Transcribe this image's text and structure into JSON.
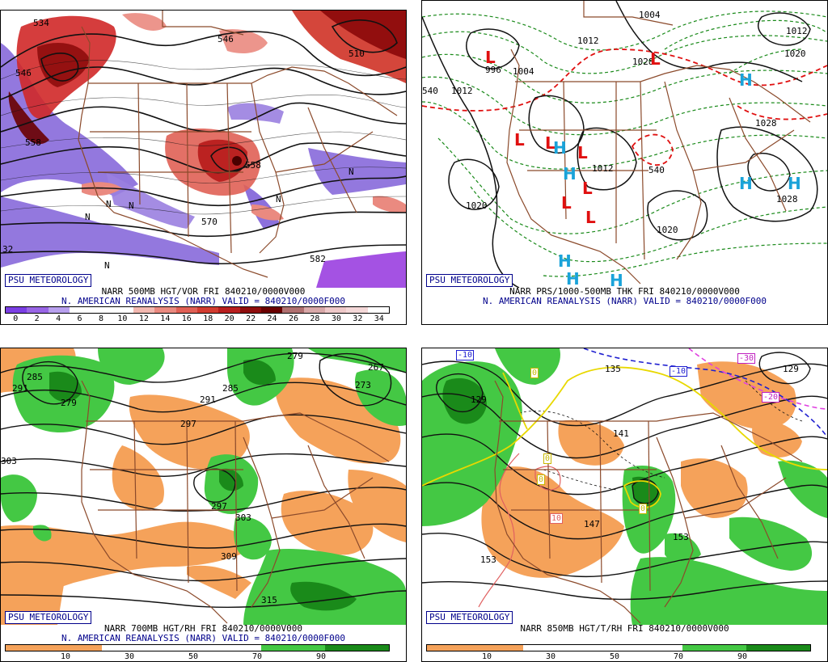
{
  "panels": {
    "p1": {
      "badge": "PSU METEOROLOGY",
      "caption1": "NARR 500MB HGT/VOR FRI 840210/0000V000",
      "caption2": "N. AMERICAN REANALYSIS (NARR) VALID = 840210/0000F000",
      "colorbar_labels": [
        "0",
        "2",
        "4",
        "6",
        "8",
        "10",
        "12",
        "14",
        "16",
        "18",
        "20",
        "22",
        "24",
        "26",
        "28",
        "30",
        "32",
        "34"
      ],
      "colorbar_colors": [
        "#7b3fe4",
        "#9966e6",
        "#b8a0ee",
        "#ffffff",
        "#ffffff",
        "#ffffff",
        "#f2b8b0",
        "#ea8a80",
        "#e06055",
        "#d23c30",
        "#b81e1e",
        "#8e0c0c",
        "#6a0000",
        "#b07070",
        "#d8a8a8",
        "#eec8c8",
        "#f4d8d8",
        "#ffffff"
      ],
      "map_labels": [
        "534",
        "546",
        "546",
        "558",
        "558",
        "570",
        "582",
        "510",
        "N",
        "N",
        "N",
        "N",
        "N",
        "N",
        "32"
      ]
    },
    "p2": {
      "badge": "PSU METEOROLOGY",
      "caption1": "NARR PRS/1000-500MB THK FRI 840210/0000V000",
      "caption2": "N. AMERICAN REANALYSIS (NARR) VALID = 840210/0000F000",
      "map_labels": [
        "1004",
        "1012",
        "1012",
        "1020",
        "1012",
        "540",
        "1012",
        "996",
        "1004",
        "1020",
        "1028",
        "540",
        "1028",
        "1020",
        "1028"
      ],
      "centers": [
        "L",
        "L",
        "L",
        "L",
        "L",
        "L",
        "L",
        "L",
        "H",
        "H",
        "H",
        "H",
        "H",
        "H",
        "H",
        "H"
      ]
    },
    "p3": {
      "badge": "PSU METEOROLOGY",
      "caption1": "NARR 700MB HGT/RH FRI 840210/0000V000",
      "caption2": "N. AMERICAN REANALYSIS (NARR) VALID = 840210/0000F000",
      "colorbar_labels": [
        "10",
        "30",
        "50",
        "70",
        "90"
      ],
      "map_labels": [
        "285",
        "291",
        "279",
        "303",
        "291",
        "285",
        "297",
        "279",
        "267",
        "273",
        "297",
        "303",
        "309",
        "315"
      ]
    },
    "p4": {
      "badge": "PSU METEOROLOGY",
      "caption1": "NARR 850MB HGT/T/RH FRI 840210/0000V000",
      "caption2": "",
      "colorbar_labels": [
        "10",
        "30",
        "50",
        "70",
        "90"
      ],
      "map_labels": [
        "135",
        "129",
        "129",
        "141",
        "147",
        "153",
        "153"
      ],
      "temp_boxes": [
        "-10",
        "-10",
        "-30",
        "-20",
        "0",
        "0",
        "0",
        "10",
        "0"
      ]
    }
  },
  "colors": {
    "border_brown": "#8b4a2b",
    "rh_orange": "#f5a25a",
    "rh_green_light": "#44c844",
    "rh_green_dark": "#1a8a1a",
    "vor_purple": "#8060d8",
    "vor_red": "#d02828",
    "thk_green": "#1a8a1a",
    "thk_red": "#e01010",
    "badge_blue": "#00008b"
  }
}
